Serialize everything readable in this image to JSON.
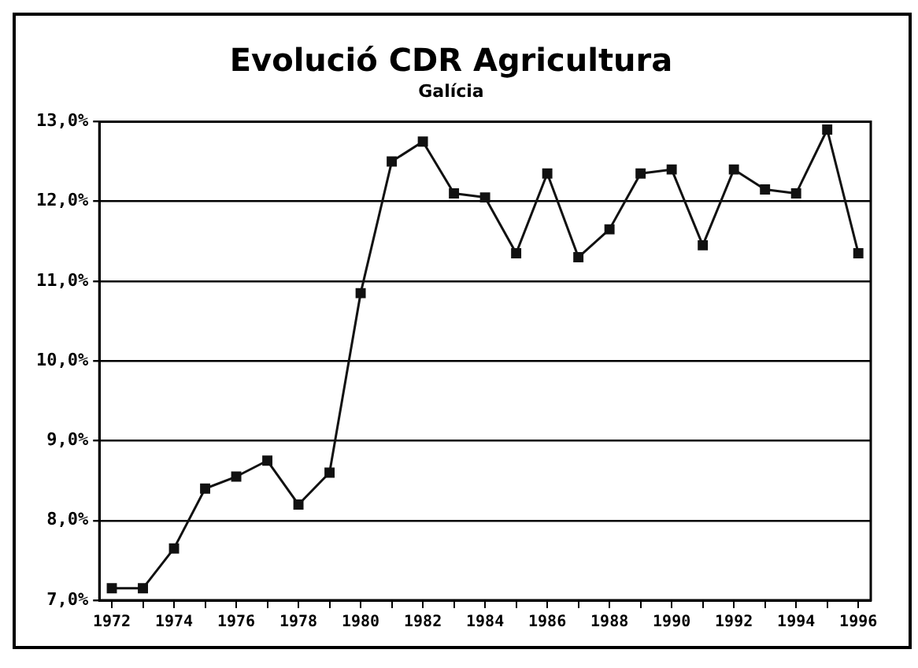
{
  "chart_data": {
    "type": "line",
    "title": "Evolució CDR Agricultura",
    "subtitle": "Galícia",
    "x": [
      1972,
      1973,
      1974,
      1975,
      1976,
      1977,
      1978,
      1979,
      1980,
      1981,
      1982,
      1983,
      1984,
      1985,
      1986,
      1987,
      1988,
      1989,
      1990,
      1991,
      1992,
      1993,
      1994,
      1995,
      1996
    ],
    "series": [
      {
        "color": "#111111",
        "values": [
          7.15,
          7.15,
          7.65,
          8.4,
          8.55,
          8.75,
          8.2,
          8.6,
          10.85,
          12.5,
          12.75,
          12.1,
          12.05,
          11.35,
          12.35,
          11.3,
          11.65,
          12.35,
          12.4,
          11.45,
          12.4,
          12.15,
          12.1,
          12.9,
          11.35
        ]
      }
    ],
    "xlim": [
      1971.6,
      1996.4
    ],
    "xticks": [
      1972,
      {
        "value": 1973,
        "label": null
      },
      1974,
      {
        "value": 1975,
        "label": null
      },
      1976,
      {
        "value": 1977,
        "label": null
      },
      1978,
      {
        "value": 1979,
        "label": null
      },
      1980,
      {
        "value": 1981,
        "label": null
      },
      1982,
      {
        "value": 1983,
        "label": null
      },
      1984,
      {
        "value": 1985,
        "label": null
      },
      1986,
      {
        "value": 1987,
        "label": null
      },
      1988,
      {
        "value": 1989,
        "label": null
      },
      1990,
      {
        "value": 1991,
        "label": null
      },
      1992,
      {
        "value": 1993,
        "label": null
      },
      1994,
      {
        "value": 1995,
        "label": null
      },
      1996
    ],
    "ylim": [
      7,
      13
    ],
    "yticks": [
      {
        "value": 7,
        "label": "7,0%"
      },
      {
        "value": 8,
        "label": "8,0%"
      },
      {
        "value": 9,
        "label": "9,0%"
      },
      {
        "value": 10,
        "label": "10,0%"
      },
      {
        "value": 11,
        "label": "11,0%"
      },
      {
        "value": 12,
        "label": "12,0%"
      },
      {
        "value": 13,
        "label": "13,0%"
      }
    ],
    "grid": "y",
    "legend": false,
    "marker": "square",
    "line_style": "solid"
  }
}
